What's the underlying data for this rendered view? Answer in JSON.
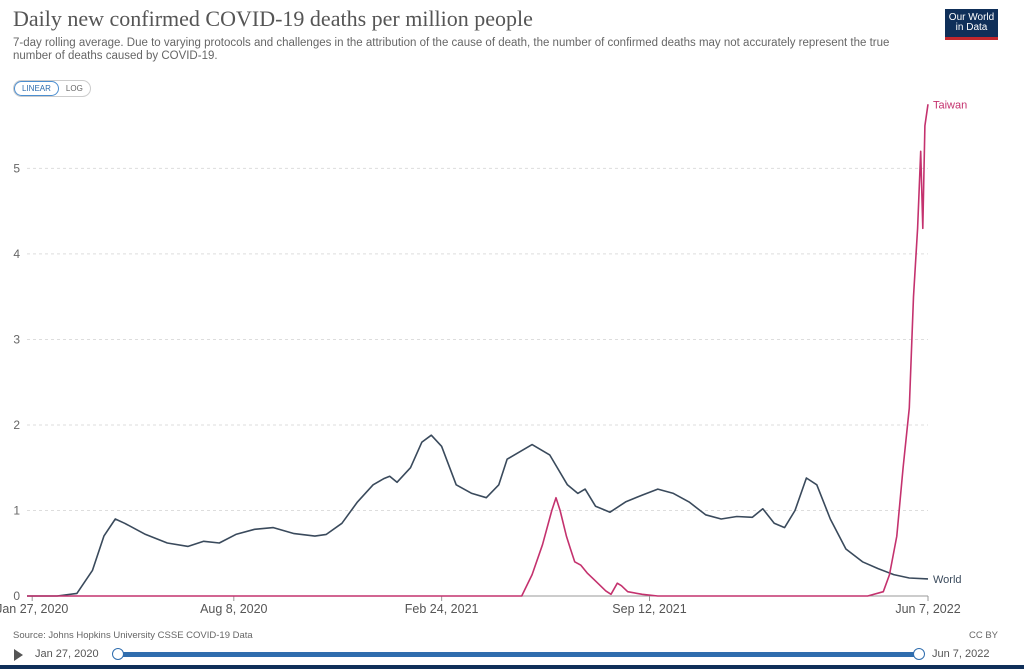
{
  "chart_data": {
    "type": "line",
    "title": "Daily new confirmed COVID-19 deaths per million people",
    "subtitle": "7-day rolling average. Due to varying protocols and challenges in the attribution of the cause of death, the number of confirmed deaths may not accurately represent the true number of deaths caused by COVID-19.",
    "xlabel": "",
    "ylabel": "",
    "x_ticks": [
      "Jan 27, 2020",
      "Aug 8, 2020",
      "Feb 24, 2021",
      "Sep 12, 2021",
      "Jun 7, 2022"
    ],
    "y_ticks": [
      "0",
      "1",
      "2",
      "3",
      "4",
      "5"
    ],
    "ylim": [
      0,
      5.8
    ],
    "xlim": [
      "2020-01-22",
      "2022-06-07"
    ],
    "grid": "horizontal dashed",
    "legend": "end-of-line labels",
    "series": [
      {
        "name": "World",
        "color": "#3a4a5c",
        "points": [
          [
            "2020-01-22",
            0.0
          ],
          [
            "2020-02-20",
            0.0
          ],
          [
            "2020-03-10",
            0.03
          ],
          [
            "2020-03-25",
            0.3
          ],
          [
            "2020-04-05",
            0.7
          ],
          [
            "2020-04-16",
            0.9
          ],
          [
            "2020-04-25",
            0.85
          ],
          [
            "2020-05-15",
            0.72
          ],
          [
            "2020-06-05",
            0.62
          ],
          [
            "2020-06-25",
            0.58
          ],
          [
            "2020-07-10",
            0.64
          ],
          [
            "2020-07-25",
            0.62
          ],
          [
            "2020-08-10",
            0.72
          ],
          [
            "2020-08-28",
            0.78
          ],
          [
            "2020-09-15",
            0.8
          ],
          [
            "2020-10-05",
            0.73
          ],
          [
            "2020-10-25",
            0.7
          ],
          [
            "2020-11-05",
            0.72
          ],
          [
            "2020-11-20",
            0.85
          ],
          [
            "2020-12-05",
            1.1
          ],
          [
            "2020-12-20",
            1.3
          ],
          [
            "2020-12-30",
            1.37
          ],
          [
            "2021-01-05",
            1.4
          ],
          [
            "2021-01-12",
            1.33
          ],
          [
            "2021-01-25",
            1.5
          ],
          [
            "2021-02-05",
            1.8
          ],
          [
            "2021-02-14",
            1.88
          ],
          [
            "2021-02-24",
            1.75
          ],
          [
            "2021-03-10",
            1.3
          ],
          [
            "2021-03-25",
            1.2
          ],
          [
            "2021-04-08",
            1.15
          ],
          [
            "2021-04-20",
            1.3
          ],
          [
            "2021-04-28",
            1.6
          ],
          [
            "2021-05-05",
            1.65
          ],
          [
            "2021-05-22",
            1.77
          ],
          [
            "2021-06-08",
            1.65
          ],
          [
            "2021-06-25",
            1.3
          ],
          [
            "2021-07-05",
            1.2
          ],
          [
            "2021-07-12",
            1.25
          ],
          [
            "2021-07-22",
            1.05
          ],
          [
            "2021-08-05",
            0.98
          ],
          [
            "2021-08-20",
            1.1
          ],
          [
            "2021-09-05",
            1.18
          ],
          [
            "2021-09-20",
            1.25
          ],
          [
            "2021-10-05",
            1.2
          ],
          [
            "2021-10-20",
            1.1
          ],
          [
            "2021-11-05",
            0.95
          ],
          [
            "2021-11-20",
            0.9
          ],
          [
            "2021-12-05",
            0.93
          ],
          [
            "2021-12-20",
            0.92
          ],
          [
            "2021-12-30",
            1.02
          ],
          [
            "2022-01-10",
            0.85
          ],
          [
            "2022-01-20",
            0.8
          ],
          [
            "2022-01-30",
            1.0
          ],
          [
            "2022-02-10",
            1.38
          ],
          [
            "2022-02-20",
            1.3
          ],
          [
            "2022-03-05",
            0.9
          ],
          [
            "2022-03-20",
            0.55
          ],
          [
            "2022-04-05",
            0.4
          ],
          [
            "2022-04-20",
            0.32
          ],
          [
            "2022-05-05",
            0.25
          ],
          [
            "2022-05-20",
            0.21
          ],
          [
            "2022-06-07",
            0.2
          ]
        ]
      },
      {
        "name": "Taiwan",
        "color": "#c4326e",
        "points": [
          [
            "2020-01-22",
            0.0
          ],
          [
            "2021-05-12",
            0.0
          ],
          [
            "2021-05-22",
            0.25
          ],
          [
            "2021-06-01",
            0.6
          ],
          [
            "2021-06-10",
            1.0
          ],
          [
            "2021-06-14",
            1.15
          ],
          [
            "2021-06-18",
            1.0
          ],
          [
            "2021-06-24",
            0.7
          ],
          [
            "2021-06-28",
            0.55
          ],
          [
            "2021-07-02",
            0.4
          ],
          [
            "2021-07-08",
            0.36
          ],
          [
            "2021-07-14",
            0.27
          ],
          [
            "2021-07-20",
            0.2
          ],
          [
            "2021-07-26",
            0.13
          ],
          [
            "2021-08-01",
            0.06
          ],
          [
            "2021-08-06",
            0.02
          ],
          [
            "2021-08-12",
            0.15
          ],
          [
            "2021-08-16",
            0.12
          ],
          [
            "2021-08-22",
            0.05
          ],
          [
            "2021-09-05",
            0.02
          ],
          [
            "2021-09-20",
            0.0
          ],
          [
            "2022-04-10",
            0.0
          ],
          [
            "2022-04-25",
            0.05
          ],
          [
            "2022-05-01",
            0.25
          ],
          [
            "2022-05-08",
            0.7
          ],
          [
            "2022-05-14",
            1.5
          ],
          [
            "2022-05-20",
            2.2
          ],
          [
            "2022-05-24",
            3.5
          ],
          [
            "2022-05-28",
            4.3
          ],
          [
            "2022-05-31",
            5.2
          ],
          [
            "2022-06-02",
            4.3
          ],
          [
            "2022-06-04",
            5.5
          ],
          [
            "2022-06-07",
            5.75
          ]
        ]
      }
    ]
  },
  "logo": {
    "line1": "Our World",
    "line2": "in Data"
  },
  "scale_toggle": {
    "linear": "LINEAR",
    "log": "LOG"
  },
  "footer": {
    "source": "Source: Johns Hopkins University CSSE COVID-19 Data",
    "license": "CC BY"
  },
  "timeline": {
    "start": "Jan 27, 2020",
    "end": "Jun 7, 2022"
  }
}
